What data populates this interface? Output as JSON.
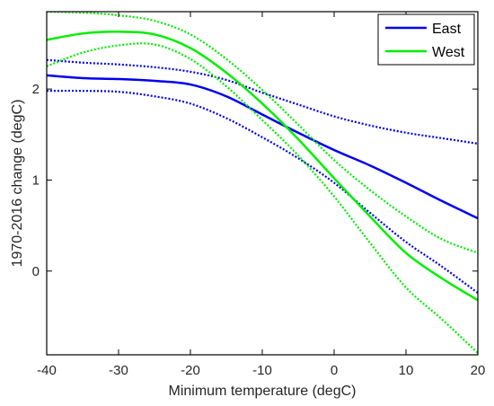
{
  "chart_data": {
    "type": "line",
    "title": "",
    "xlabel": "Minimum temperature (degC)",
    "ylabel": "1970-2016 change (degC)",
    "xlim": [
      -40,
      20
    ],
    "ylim": [
      -0.92,
      2.85
    ],
    "xticks": [
      -40,
      -30,
      -20,
      -10,
      0,
      10,
      20
    ],
    "yticks": [
      0,
      1,
      2
    ],
    "grid": false,
    "legend": {
      "placement": "top-right",
      "entries": [
        "East",
        "West"
      ]
    },
    "series": [
      {
        "name": "East",
        "color": "#0000ee",
        "x": [
          -40,
          -35,
          -30,
          -25,
          -20,
          -15,
          -10,
          -5,
          0,
          5,
          10,
          15,
          20
        ],
        "y": [
          2.15,
          2.12,
          2.11,
          2.09,
          2.05,
          1.92,
          1.72,
          1.52,
          1.33,
          1.16,
          0.97,
          0.77,
          0.58
        ],
        "lower": [
          1.98,
          1.98,
          1.97,
          1.92,
          1.84,
          1.68,
          1.47,
          1.24,
          0.97,
          0.64,
          0.32,
          0.05,
          -0.24
        ],
        "upper": [
          2.32,
          2.29,
          2.27,
          2.24,
          2.19,
          2.1,
          1.96,
          1.83,
          1.7,
          1.6,
          1.52,
          1.46,
          1.4
        ]
      },
      {
        "name": "West",
        "color": "#00ee00",
        "x": [
          -40,
          -35,
          -30,
          -25,
          -20,
          -15,
          -10,
          -5,
          0,
          5,
          10,
          15,
          20
        ],
        "y": [
          2.54,
          2.61,
          2.63,
          2.6,
          2.45,
          2.18,
          1.84,
          1.45,
          1.02,
          0.6,
          0.2,
          -0.08,
          -0.32
        ],
        "lower": [
          2.25,
          2.4,
          2.48,
          2.49,
          2.33,
          2.03,
          1.66,
          1.27,
          0.82,
          0.31,
          -0.18,
          -0.53,
          -0.9
        ],
        "upper": [
          2.85,
          2.84,
          2.81,
          2.75,
          2.6,
          2.33,
          1.99,
          1.61,
          1.22,
          0.89,
          0.6,
          0.35,
          0.2
        ]
      }
    ]
  }
}
